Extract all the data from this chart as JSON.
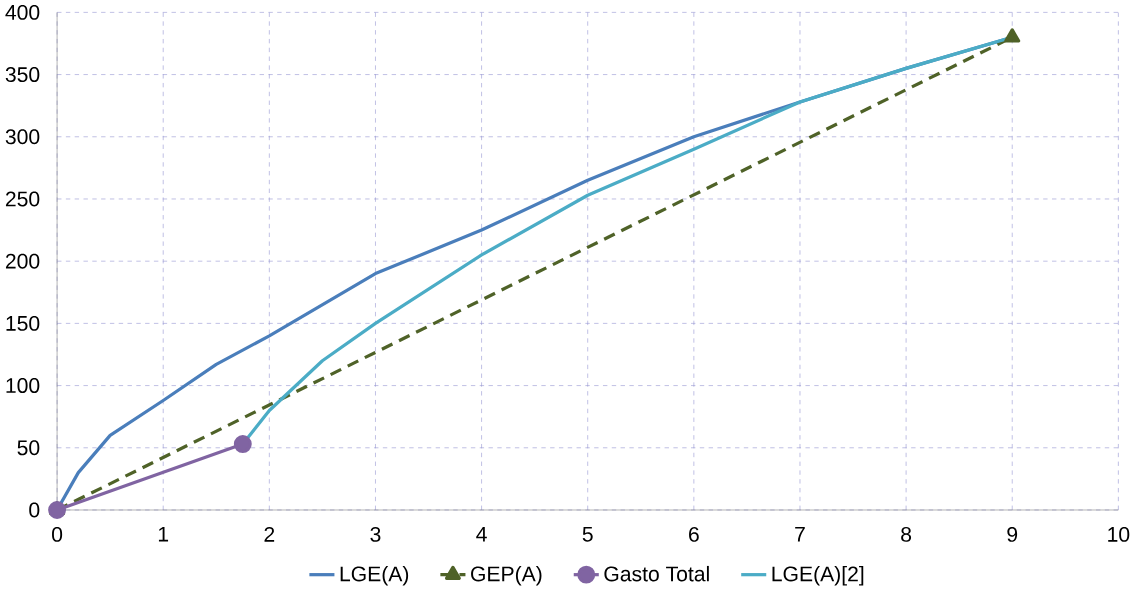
{
  "chart_data": {
    "type": "line",
    "xlim": [
      0,
      10
    ],
    "ylim": [
      0,
      400
    ],
    "xticks": [
      0,
      1,
      2,
      3,
      4,
      5,
      6,
      7,
      8,
      9,
      10
    ],
    "yticks": [
      0,
      50,
      100,
      150,
      200,
      250,
      300,
      350,
      400
    ],
    "grid": true,
    "legend": "bottom",
    "marker": "none",
    "series": [
      {
        "name": "LGE(A)",
        "color": "#4a7ebb",
        "x": [
          0,
          0.2,
          0.5,
          1,
          1.5,
          2,
          3,
          4,
          5,
          6,
          7,
          8,
          9
        ],
        "values": [
          0,
          30,
          60,
          88,
          117,
          140,
          190,
          225,
          265,
          300,
          328,
          355,
          380
        ]
      },
      {
        "name": "GEP(A)",
        "color": "#4f6228",
        "line_style": "dashed",
        "marker": "triangle",
        "x": [
          0,
          9
        ],
        "values": [
          0,
          380
        ]
      },
      {
        "name": "Gasto Total",
        "color": "#8064a2",
        "marker": "circle",
        "x": [
          0,
          1.75
        ],
        "values": [
          0,
          53
        ]
      },
      {
        "name": "LGE(A)[2]",
        "color": "#4bacc6",
        "x": [
          1.75,
          2,
          2.5,
          3,
          4,
          5,
          6,
          7,
          8,
          9
        ],
        "values": [
          53,
          80,
          120,
          150,
          205,
          253,
          290,
          328,
          355,
          380
        ]
      }
    ]
  }
}
